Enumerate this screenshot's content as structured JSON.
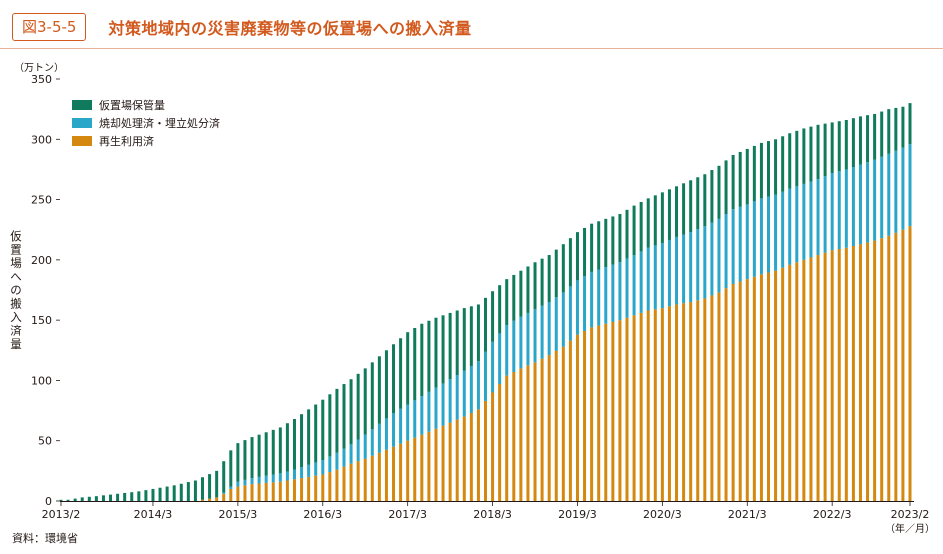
{
  "figure": {
    "number": "図3-5-5",
    "title": "対策地域内の災害廃棄物等の仮置場への搬入済量"
  },
  "source": "資料：環境省",
  "colors": {
    "storage": "#0f7a5c",
    "incinerated": "#2aa6c9",
    "recycled": "#d4880f",
    "accent": "#d25a1e"
  },
  "chart_data": {
    "type": "bar",
    "stacked": true,
    "unit_label": "（万トン）",
    "ylabel": "仮置場への搬入済量",
    "xunit_label": "（年／月）",
    "ylim": [
      0,
      350
    ],
    "yticks": [
      0,
      50,
      100,
      150,
      200,
      250,
      300,
      350
    ],
    "x_tick_labels": [
      "2013/2",
      "2014/3",
      "2015/3",
      "2016/3",
      "2017/3",
      "2018/3",
      "2019/3",
      "2020/3",
      "2021/3",
      "2022/3",
      "2023/2"
    ],
    "x_tick_indices": [
      0,
      13,
      25,
      37,
      49,
      61,
      73,
      85,
      97,
      109,
      120
    ],
    "legend_position": "top-left",
    "series": [
      {
        "name": "仮置場保管量",
        "color": "#0f7a5c"
      },
      {
        "name": "焼却処理済・埋立処分済",
        "color": "#2aa6c9"
      },
      {
        "name": "再生利用済",
        "color": "#d4880f"
      }
    ],
    "anchors": {
      "index": [
        0,
        1,
        3,
        5,
        8,
        11,
        13,
        16,
        19,
        22,
        23,
        24,
        25,
        27,
        29,
        31,
        33,
        35,
        37,
        39,
        41,
        43,
        45,
        47,
        49,
        51,
        53,
        55,
        57,
        59,
        61,
        63,
        65,
        67,
        69,
        71,
        73,
        75,
        77,
        79,
        81,
        83,
        85,
        87,
        89,
        91,
        93,
        95,
        97,
        99,
        101,
        103,
        105,
        107,
        109,
        111,
        113,
        115,
        117,
        119,
        120
      ],
      "recycled": [
        0,
        0,
        0,
        0,
        0,
        0,
        0,
        0,
        0,
        3,
        6,
        10,
        12,
        14,
        15,
        16,
        18,
        20,
        22,
        26,
        31,
        35,
        40,
        45,
        50,
        55,
        60,
        65,
        70,
        76,
        90,
        104,
        110,
        115,
        121,
        128,
        138,
        144,
        147,
        150,
        154,
        158,
        160,
        163,
        165,
        168,
        173,
        180,
        184,
        188,
        191,
        196,
        200,
        204,
        208,
        210,
        213,
        216,
        220,
        225,
        228
      ],
      "incinerated": [
        0,
        0,
        0,
        0,
        0,
        0,
        0,
        0,
        0,
        0,
        1,
        2,
        4,
        5,
        6,
        7,
        8,
        10,
        12,
        14,
        16,
        20,
        24,
        28,
        30,
        32,
        34,
        36,
        38,
        40,
        42,
        42,
        43,
        44,
        44,
        45,
        45,
        46,
        47,
        48,
        50,
        52,
        54,
        56,
        58,
        60,
        61,
        62,
        62,
        63,
        63,
        63,
        63,
        63,
        64,
        65,
        66,
        67,
        68,
        68,
        68
      ],
      "storage": [
        1,
        1,
        3,
        4,
        6,
        8,
        10,
        13,
        17,
        22,
        26,
        30,
        32,
        34,
        36,
        38,
        42,
        46,
        50,
        53,
        54,
        55,
        56,
        57,
        60,
        60,
        58,
        55,
        52,
        47,
        42,
        38,
        38,
        39,
        39,
        40,
        40,
        40,
        40,
        40,
        41,
        41,
        42,
        42,
        43,
        43,
        44,
        45,
        46,
        46,
        46,
        46,
        46,
        45,
        42,
        41,
        40,
        38,
        37,
        34,
        34
      ]
    }
  }
}
